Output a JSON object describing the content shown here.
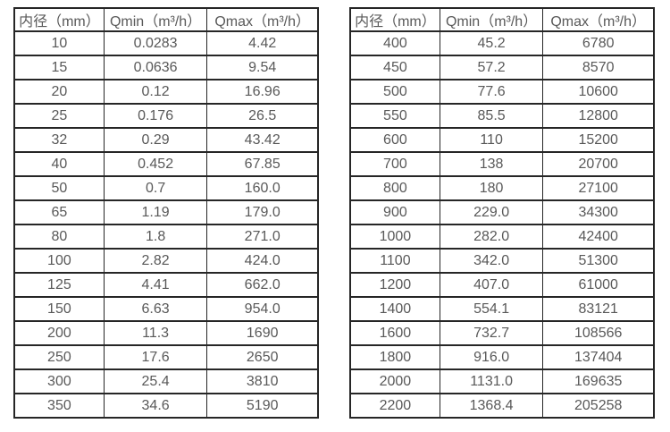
{
  "page": {
    "background_color": "#ffffff",
    "text_color": "#595959",
    "border_color": "#262626"
  },
  "tables": [
    {
      "name": "small-diameters",
      "headers": [
        "内径（mm）",
        "Qmin（m³/h）",
        "Qmax（m³/h）"
      ],
      "rows": [
        [
          "10",
          "0.0283",
          "4.42"
        ],
        [
          "15",
          "0.0636",
          "9.54"
        ],
        [
          "20",
          "0.12",
          "16.96"
        ],
        [
          "25",
          "0.176",
          "26.5"
        ],
        [
          "32",
          "0.29",
          "43.42"
        ],
        [
          "40",
          "0.452",
          "67.85"
        ],
        [
          "50",
          "0.7",
          "160.0"
        ],
        [
          "65",
          "1.19",
          "179.0"
        ],
        [
          "80",
          "1.8",
          "271.0"
        ],
        [
          "100",
          "2.82",
          "424.0"
        ],
        [
          "125",
          "4.41",
          "662.0"
        ],
        [
          "150",
          "6.63",
          "954.0"
        ],
        [
          "200",
          "11.3",
          "1690"
        ],
        [
          "250",
          "17.6",
          "2650"
        ],
        [
          "300",
          "25.4",
          "3810"
        ],
        [
          "350",
          "34.6",
          "5190"
        ]
      ]
    },
    {
      "name": "large-diameters",
      "headers": [
        "内径（mm）",
        "Qmin（m³/h）",
        "Qmax（m³/h）"
      ],
      "rows": [
        [
          "400",
          "45.2",
          "6780"
        ],
        [
          "450",
          "57.2",
          "8570"
        ],
        [
          "500",
          "77.6",
          "10600"
        ],
        [
          "550",
          "85.5",
          "12800"
        ],
        [
          "600",
          "110",
          "15200"
        ],
        [
          "700",
          "138",
          "20700"
        ],
        [
          "800",
          "180",
          "27100"
        ],
        [
          "900",
          "229.0",
          "34300"
        ],
        [
          "1000",
          "282.0",
          "42400"
        ],
        [
          "1100",
          "342.0",
          "51300"
        ],
        [
          "1200",
          "407.0",
          "61000"
        ],
        [
          "1400",
          "554.1",
          "83121"
        ],
        [
          "1600",
          "732.7",
          "108566"
        ],
        [
          "1800",
          "916.0",
          "137404"
        ],
        [
          "2000",
          "1131.0",
          "169635"
        ],
        [
          "2200",
          "1368.4",
          "205258"
        ]
      ]
    }
  ]
}
